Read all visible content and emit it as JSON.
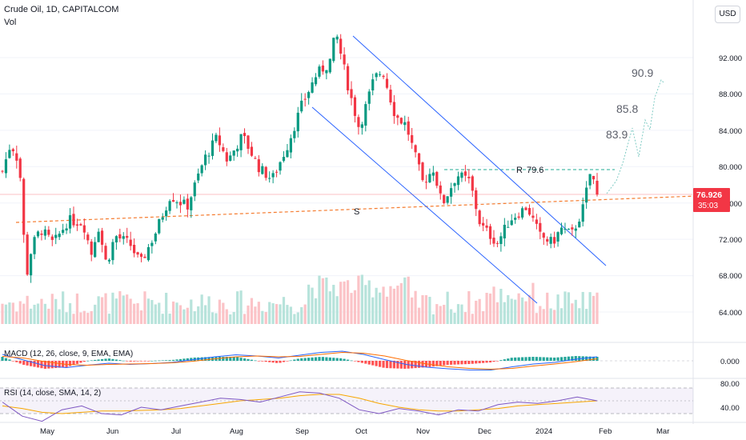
{
  "header": {
    "symbol_line": "Crude Oil, 1D, CAPITALCOM",
    "vol_label": "Vol",
    "currency_button": "USD"
  },
  "colors": {
    "up": "#089981",
    "down": "#f23645",
    "channel": "#2962ff",
    "support": "#f57c30",
    "resistance": "#22ab94",
    "projection": "#80cbc4",
    "macd": "#2962ff",
    "signal": "#ff6d00",
    "rsi": "#7e57c2",
    "rsi_ma": "#f7a600"
  },
  "chart_data": [
    {
      "type": "candlestick",
      "title": "Crude Oil, 1D, CAPITALCOM",
      "price_axis_ticks": [
        "92.000",
        "88.000",
        "84.000",
        "80.000",
        "76.000",
        "72.000",
        "68.000",
        "64.000"
      ],
      "ylim": [
        62.2,
        96.8
      ],
      "time_axis_ticks": [
        "May",
        "Jun",
        "Jul",
        "Aug",
        "Sep",
        "Oct",
        "Nov",
        "Dec",
        "2024",
        "Feb",
        "Mar"
      ],
      "last_price": "76.926",
      "countdown": "35:03",
      "annotations": {
        "resistance_label": "R",
        "resistance_value": "79.6",
        "support_label": "S",
        "targets": [
          "83.9",
          "85.8",
          "90.9"
        ]
      },
      "ohlc_path": [
        {
          "date": "2023-04-24",
          "close": 79.5
        },
        {
          "date": "2023-04-28",
          "close": 82.6
        },
        {
          "date": "2023-05-02",
          "close": 80.3
        },
        {
          "date": "2023-05-04",
          "close": 72.6
        },
        {
          "date": "2023-05-05",
          "close": 67.5
        },
        {
          "date": "2023-05-08",
          "close": 71.3
        },
        {
          "date": "2023-05-12",
          "close": 73.1
        },
        {
          "date": "2023-05-18",
          "close": 71.5
        },
        {
          "date": "2023-05-25",
          "close": 74.1
        },
        {
          "date": "2023-06-01",
          "close": 73.8
        },
        {
          "date": "2023-06-05",
          "close": 70.4
        },
        {
          "date": "2023-06-08",
          "close": 73.6
        },
        {
          "date": "2023-06-12",
          "close": 69.2
        },
        {
          "date": "2023-06-16",
          "close": 72.4
        },
        {
          "date": "2023-06-23",
          "close": 71.5
        },
        {
          "date": "2023-06-28",
          "close": 69.3
        },
        {
          "date": "2023-07-05",
          "close": 72.7
        },
        {
          "date": "2023-07-12",
          "close": 76.8
        },
        {
          "date": "2023-07-20",
          "close": 75.6
        },
        {
          "date": "2023-07-28",
          "close": 80.8
        },
        {
          "date": "2023-08-03",
          "close": 83.2
        },
        {
          "date": "2023-08-08",
          "close": 80.6
        },
        {
          "date": "2023-08-15",
          "close": 83.4
        },
        {
          "date": "2023-08-23",
          "close": 79.8
        },
        {
          "date": "2023-08-29",
          "close": 78.6
        },
        {
          "date": "2023-09-05",
          "close": 82.2
        },
        {
          "date": "2023-09-12",
          "close": 86.8
        },
        {
          "date": "2023-09-19",
          "close": 90.2
        },
        {
          "date": "2023-09-25",
          "close": 91.4
        },
        {
          "date": "2023-09-28",
          "close": 94.8
        },
        {
          "date": "2023-10-04",
          "close": 88.6
        },
        {
          "date": "2023-10-09",
          "close": 84.2
        },
        {
          "date": "2023-10-16",
          "close": 89.7
        },
        {
          "date": "2023-10-20",
          "close": 90.6
        },
        {
          "date": "2023-10-26",
          "close": 85.6
        },
        {
          "date": "2023-10-31",
          "close": 84.6
        },
        {
          "date": "2023-11-08",
          "close": 78.2
        },
        {
          "date": "2023-11-13",
          "close": 79.8
        },
        {
          "date": "2023-11-17",
          "close": 75.8
        },
        {
          "date": "2023-11-24",
          "close": 79.1
        },
        {
          "date": "2023-11-30",
          "close": 78.4
        },
        {
          "date": "2023-12-05",
          "close": 73.6
        },
        {
          "date": "2023-12-13",
          "close": 71.6
        },
        {
          "date": "2023-12-19",
          "close": 74.2
        },
        {
          "date": "2023-12-27",
          "close": 75.6
        },
        {
          "date": "2024-01-02",
          "close": 72.4
        },
        {
          "date": "2024-01-08",
          "close": 71.6
        },
        {
          "date": "2024-01-12",
          "close": 73.2
        },
        {
          "date": "2024-01-17",
          "close": 72.5
        },
        {
          "date": "2024-01-22",
          "close": 75.1
        },
        {
          "date": "2024-01-25",
          "close": 78.4
        },
        {
          "date": "2024-01-26",
          "close": 79.6
        },
        {
          "date": "2024-01-29",
          "close": 76.9
        }
      ]
    },
    {
      "type": "line",
      "title": "MACD (12, 26, close, 9, EMA, EMA)",
      "ytick": "0.000",
      "series": [
        {
          "name": "MACD",
          "values": [
            1.6,
            0.2,
            -1.2,
            -1.7,
            -1.1,
            -0.6,
            -0.9,
            -0.7,
            -0.4,
            0.3,
            1.0,
            1.5,
            1.2,
            0.7,
            1.4,
            2.1,
            2.4,
            1.6,
            0.3,
            -0.9,
            -1.6,
            -2.0,
            -2.3,
            -2.3,
            -1.5,
            -0.8,
            -0.4,
            0.4,
            1.0
          ]
        },
        {
          "name": "Signal",
          "values": [
            1.1,
            0.7,
            -0.2,
            -0.9,
            -1.1,
            -0.9,
            -0.8,
            -0.7,
            -0.5,
            -0.1,
            0.5,
            1.0,
            1.2,
            1.0,
            1.1,
            1.6,
            2.1,
            1.9,
            1.2,
            0.1,
            -0.8,
            -1.5,
            -1.9,
            -2.1,
            -1.9,
            -1.3,
            -0.8,
            -0.2,
            0.5
          ]
        }
      ]
    },
    {
      "type": "line",
      "title": "RSI (14, close, SMA, 14, 2)",
      "yticks": [
        "80.00",
        "40.00"
      ],
      "ylim": [
        30,
        90
      ],
      "series": [
        {
          "name": "RSI",
          "values": [
            58,
            36,
            28,
            46,
            52,
            40,
            38,
            50,
            46,
            52,
            58,
            64,
            62,
            58,
            66,
            74,
            72,
            64,
            46,
            40,
            48,
            44,
            38,
            46,
            44,
            54,
            58,
            56,
            60,
            66,
            60
          ]
        },
        {
          "name": "RSI-based MA",
          "values": [
            52,
            48,
            42,
            40,
            42,
            44,
            44,
            45,
            46,
            48,
            52,
            56,
            60,
            62,
            64,
            68,
            70,
            70,
            64,
            56,
            50,
            46,
            44,
            44,
            46,
            48,
            52,
            54,
            56,
            58,
            60
          ]
        }
      ]
    }
  ]
}
